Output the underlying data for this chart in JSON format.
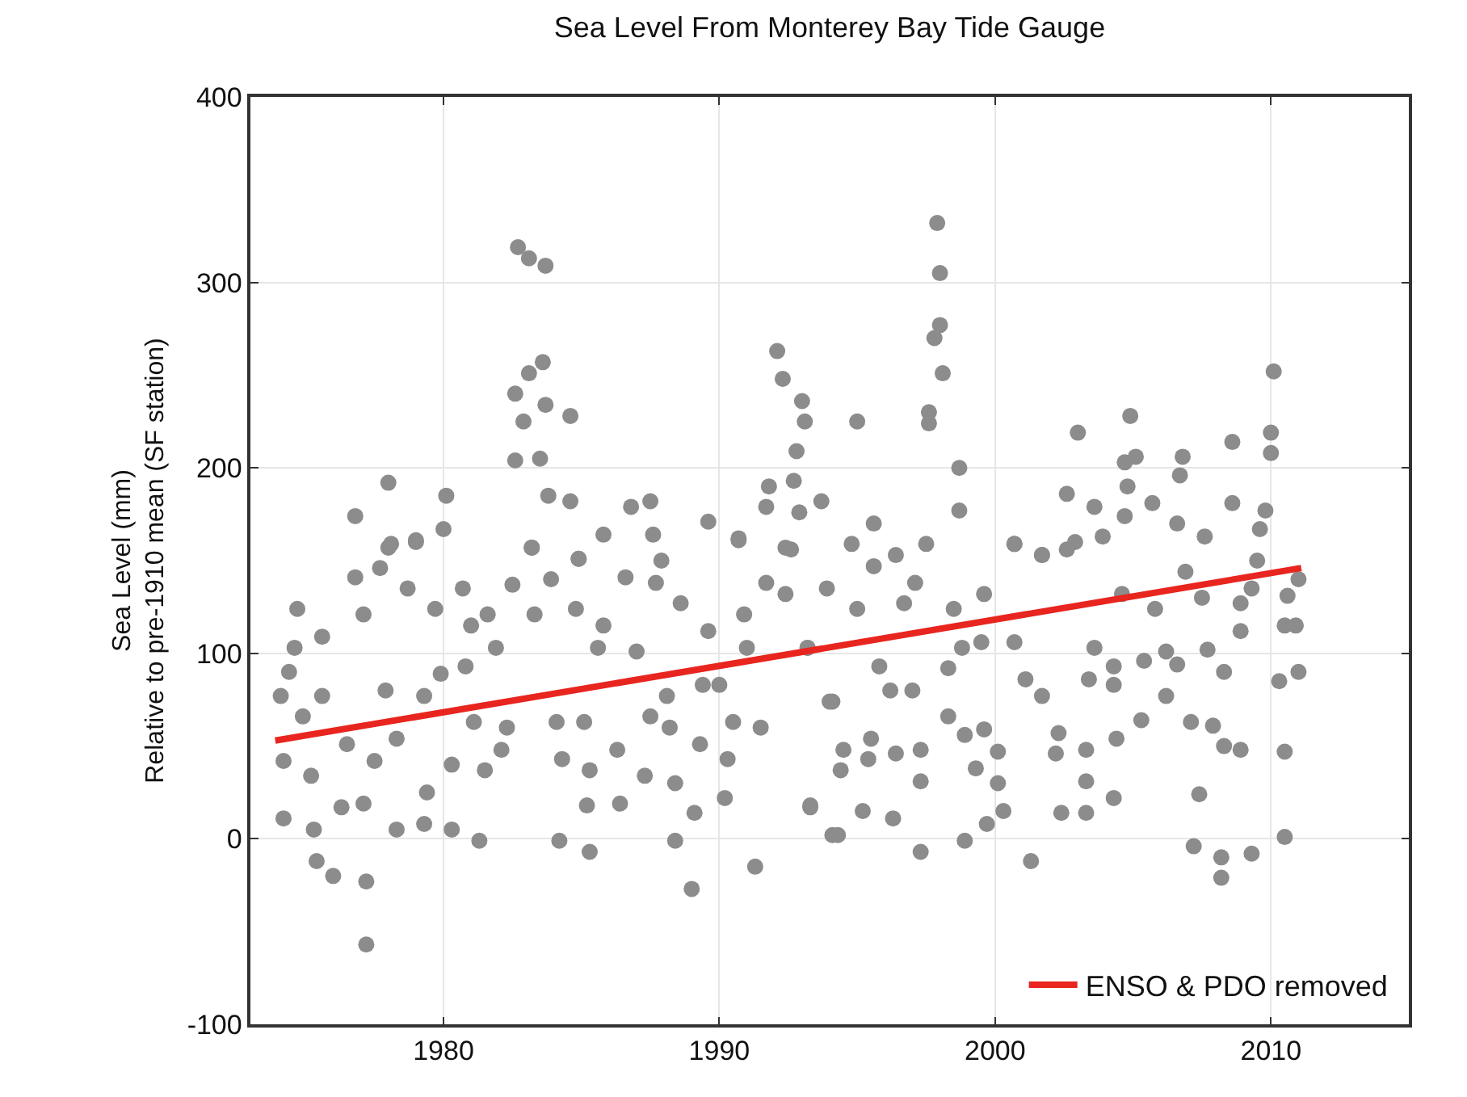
{
  "chart_data": {
    "type": "scatter",
    "title": "Sea Level From Monterey Bay Tide Gauge",
    "ylabel": "Sea Level (mm)\nRelative to pre-1910 mean (SF station)",
    "xlim": [
      1973,
      2015
    ],
    "xticks": [
      1980,
      1990,
      2000,
      2010
    ],
    "ylim": [
      -100,
      400
    ],
    "yticks": [
      -100,
      0,
      100,
      200,
      300,
      400
    ],
    "grid": true,
    "legend": "bottom right",
    "series": [
      {
        "marker": "circle",
        "color": "#8c8c8c",
        "x": [
          1974.7,
          1974.1,
          1974.2,
          1974.2,
          1974.6,
          1974.4,
          1974.9,
          1975.2,
          1975.3,
          1975.4,
          1976.0,
          1975.6,
          1975.6,
          1976.3,
          1976.5,
          1976.8,
          1977.1,
          1977.2,
          1977.2,
          1977.1,
          1977.5,
          1977.7,
          1977.9,
          1978.1,
          1978.3,
          1978.3,
          1978.7,
          1979.0,
          1979.3,
          1979.4,
          1979.3,
          1979.7,
          1979.9,
          1980.3,
          1980.3,
          1980.7,
          1980.8,
          1981.0,
          1981.1,
          1981.3,
          1981.5,
          1981.6,
          1981.9,
          1982.1,
          1982.3,
          1982.5,
          1983.2,
          1983.3,
          1983.9,
          1984.1,
          1984.2,
          1984.3,
          1984.9,
          1984.8,
          1985.1,
          1985.3,
          1985.3,
          1985.2,
          1985.6,
          1985.8,
          1986.3,
          1986.4,
          1986.6,
          1987.0,
          1987.3,
          1987.5,
          1987.7,
          1987.9,
          1988.1,
          1988.2,
          1988.4,
          1988.4,
          1988.6,
          1989.0,
          1989.1,
          1989.3,
          1989.4,
          1989.6,
          1990.0,
          1990.2,
          1990.3,
          1990.5,
          1990.7,
          1990.9,
          1991.0,
          1991.3,
          1991.5,
          1991.7,
          1992.6,
          1993.2,
          1993.3,
          1994.1,
          1994.1,
          1976.8,
          1978.0,
          1978.0,
          1979.0,
          1980.1,
          1980.0,
          1982.7,
          1983.1,
          1983.7,
          1982.6,
          1983.1,
          1983.6,
          1982.9,
          1983.7,
          1982.6,
          1983.5,
          1984.6,
          1983.8,
          1984.6,
          1983.2,
          1984.9,
          1985.8,
          1986.8,
          1987.5,
          1987.6,
          1989.6,
          1990.7,
          1992.1,
          1992.3,
          1993.0,
          1993.1,
          1992.8,
          1992.7,
          1991.8,
          1991.7,
          1993.7,
          1992.9,
          1992.4,
          1997.9,
          1998.0,
          1998.0,
          1997.8,
          1998.1,
          1997.6,
          1997.6,
          1995.0,
          1998.7,
          1998.7,
          2003.0,
          2004.9,
          2004.7,
          2005.1,
          2004.8,
          2005.7,
          2006.8,
          2006.7,
          2008.6,
          2008.6,
          2010.1,
          2010.0,
          2010.0,
          2009.8,
          2009.6,
          2002.6,
          2003.6,
          2004.7,
          2006.6,
          2007.6,
          2000.7,
          2001.7,
          2002.9,
          2003.9,
          1995.6,
          1994.8,
          1997.5,
          1996.4,
          1994.0,
          1994.5,
          1994.4,
          1993.3,
          1994.3,
          1995.5,
          1995.4,
          1995.2,
          1996.3,
          1996.4,
          1997.3,
          1997.3,
          1997.3,
          1996.2,
          1997.0,
          1995.8,
          1998.3,
          1998.3,
          1998.9,
          1999.3,
          1998.9,
          1999.7,
          2000.3,
          2000.1,
          2000.1,
          1999.6,
          1998.8,
          1999.5,
          2000.7,
          2001.3,
          2001.1,
          2001.7,
          2002.3,
          2002.2,
          2002.4,
          2003.3,
          2003.3,
          2003.3,
          2003.4,
          2003.6,
          2004.3,
          2004.4,
          2004.3,
          2004.3,
          2005.4,
          2005.3,
          2006.2,
          2006.2,
          2006.6,
          2007.4,
          2007.2,
          2008.2,
          2008.2,
          2009.3,
          2010.5,
          2010.5,
          2010.3,
          2011.0,
          2008.9,
          2008.3,
          2007.1,
          2007.9,
          2007.7,
          2008.3,
          2008.9,
          2008.9,
          2010.5,
          2010.9,
          2010.6,
          2011.0,
          2009.5,
          2009.3,
          2007.5,
          2006.9,
          2005.8,
          2004.6,
          2002.6,
          2001.7,
          2000.7,
          1999.6,
          1998.5,
          1997.1,
          1996.7,
          1995.6,
          1995.0,
          1993.9,
          1993.2,
          1992.4
        ],
        "values": [
          124,
          77,
          42,
          11,
          103,
          90,
          66,
          34,
          5,
          -12,
          -20,
          109,
          77,
          17,
          51,
          141,
          121,
          -23,
          -57,
          19,
          42,
          146,
          80,
          159,
          5,
          54,
          135,
          160,
          77,
          25,
          8,
          124,
          89,
          5,
          40,
          135,
          93,
          115,
          63,
          -1,
          37,
          121,
          103,
          48,
          60,
          137,
          157,
          121,
          140,
          63,
          -1,
          43,
          151,
          124,
          63,
          -7,
          37,
          18,
          103,
          115,
          48,
          19,
          141,
          101,
          34,
          66,
          138,
          150,
          77,
          60,
          30,
          -1,
          127,
          -27,
          14,
          51,
          83,
          112,
          83,
          22,
          43,
          63,
          161,
          121,
          103,
          -15,
          60,
          138,
          156,
          103,
          17,
          2,
          74,
          174,
          192,
          157,
          161,
          185,
          167,
          319,
          313,
          309,
          240,
          251,
          257,
          225,
          234,
          204,
          205,
          228,
          185,
          182,
          157,
          151,
          164,
          179,
          182,
          164,
          171,
          162,
          263,
          248,
          236,
          225,
          209,
          193,
          190,
          179,
          182,
          176,
          157,
          332,
          305,
          277,
          270,
          251,
          230,
          224,
          225,
          200,
          177,
          219,
          228,
          203,
          206,
          190,
          181,
          206,
          196,
          214,
          181,
          252,
          219,
          208,
          177,
          167,
          186,
          179,
          174,
          170,
          163,
          159,
          153,
          160,
          163,
          170,
          159,
          159,
          153,
          74,
          48,
          37,
          18,
          2,
          54,
          43,
          15,
          11,
          46,
          48,
          31,
          -7,
          80,
          80,
          93,
          92,
          66,
          56,
          38,
          -1,
          8,
          15,
          30,
          47,
          59,
          103,
          106,
          106,
          -12,
          86,
          77,
          57,
          46,
          14,
          14,
          31,
          48,
          86,
          103,
          22,
          54,
          83,
          93,
          96,
          64,
          77,
          101,
          94,
          24,
          -4,
          -10,
          -21,
          -8,
          1,
          47,
          85,
          90,
          48,
          50,
          63,
          61,
          102,
          90,
          112,
          127,
          115,
          115,
          131,
          140,
          150,
          135,
          130,
          144,
          124,
          132,
          156,
          153,
          159,
          132,
          124,
          138,
          127,
          147,
          124,
          135,
          103,
          132
        ]
      },
      {
        "type": "line",
        "marker": "none",
        "name": "ENSO & PDO removed",
        "color": "#e8251f",
        "x": [
          1973.9,
          2011.1
        ],
        "values": [
          53,
          146
        ]
      }
    ]
  }
}
